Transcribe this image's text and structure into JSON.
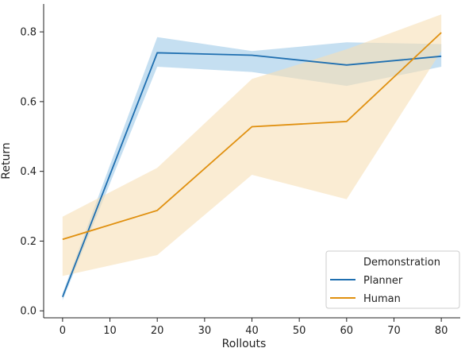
{
  "chart_data": {
    "type": "line",
    "xlabel": "Rollouts",
    "ylabel": "Return",
    "xlim": [
      -4,
      84
    ],
    "ylim": [
      -0.02,
      0.88
    ],
    "xticks": [
      0,
      10,
      20,
      30,
      40,
      50,
      60,
      70,
      80
    ],
    "yticks": [
      0.0,
      0.2,
      0.4,
      0.6,
      0.8
    ],
    "ytick_labels": [
      "0.0",
      "0.2",
      "0.4",
      "0.6",
      "0.8"
    ],
    "x": [
      0,
      20,
      40,
      60,
      80
    ],
    "grid": false,
    "legend": {
      "title": "Demonstration",
      "placement": "lower-right"
    },
    "series": [
      {
        "name": "Planner",
        "color": "#1f6fb0",
        "band_color": "#7fb8e0",
        "values": [
          0.04,
          0.74,
          0.733,
          0.705,
          0.73
        ],
        "ci_lower": [
          0.03,
          0.7,
          0.685,
          0.645,
          0.7
        ],
        "ci_upper": [
          0.05,
          0.785,
          0.745,
          0.77,
          0.765
        ]
      },
      {
        "name": "Human",
        "color": "#e0900f",
        "band_color": "#f7dfb5",
        "values": [
          0.205,
          0.288,
          0.528,
          0.543,
          0.798
        ],
        "ci_lower": [
          0.1,
          0.16,
          0.39,
          0.32,
          0.745
        ],
        "ci_upper": [
          0.27,
          0.41,
          0.665,
          0.75,
          0.85
        ]
      }
    ]
  }
}
